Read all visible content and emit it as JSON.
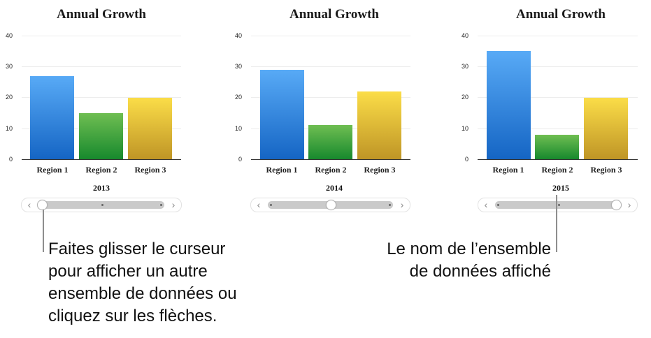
{
  "chart_data": [
    {
      "type": "bar",
      "title": "Annual Growth",
      "dataset_label": "2013",
      "categories": [
        "Region 1",
        "Region 2",
        "Region 3"
      ],
      "values": [
        27,
        15,
        20
      ],
      "xlabel": "",
      "ylabel": "",
      "yticks": [
        0,
        10,
        20,
        30,
        40
      ],
      "ylim": [
        0,
        40
      ],
      "grid": true
    },
    {
      "type": "bar",
      "title": "Annual Growth",
      "dataset_label": "2014",
      "categories": [
        "Region 1",
        "Region 2",
        "Region 3"
      ],
      "values": [
        29,
        11,
        22
      ],
      "xlabel": "",
      "ylabel": "",
      "yticks": [
        0,
        10,
        20,
        30,
        40
      ],
      "ylim": [
        0,
        40
      ],
      "grid": true
    },
    {
      "type": "bar",
      "title": "Annual Growth",
      "dataset_label": "2015",
      "categories": [
        "Region 1",
        "Region 2",
        "Region 3"
      ],
      "values": [
        35,
        8,
        20
      ],
      "xlabel": "",
      "ylabel": "",
      "yticks": [
        0,
        10,
        20,
        30,
        40
      ],
      "ylim": [
        0,
        40
      ],
      "grid": true
    }
  ],
  "colors": {
    "region1": "#3d8ee6",
    "region2": "#3fa640",
    "region3": "#e3c034"
  },
  "slider": {
    "prev_icon": "‹",
    "next_icon": "›",
    "positions": [
      0,
      1,
      2
    ]
  },
  "callouts": {
    "slider_hint": [
      "Faites glisser le curseur",
      "pour afficher un autre",
      "ensemble de données ou",
      "cliquez sur les flèches."
    ],
    "dataset_name_hint": [
      "Le nom de l’ensemble",
      "de données affiché"
    ]
  }
}
